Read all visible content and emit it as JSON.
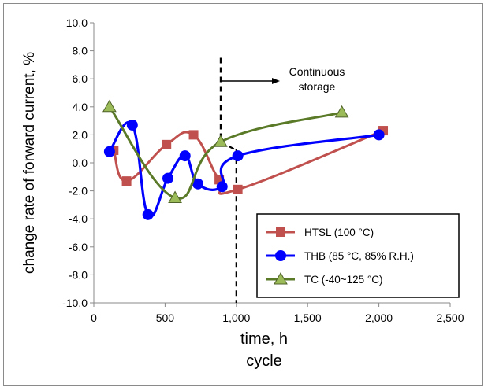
{
  "chart_data": {
    "type": "line",
    "xlabel": "time, h",
    "xlabel2": "cycle",
    "ylabel": "change rate of forward current, %",
    "xlim": [
      0,
      2500
    ],
    "ylim": [
      -10,
      10
    ],
    "xticks": [
      0,
      500,
      1000,
      1500,
      2000,
      2500
    ],
    "xtick_labels": [
      "0",
      "500",
      "1,000",
      "1,500",
      "2,000",
      "2,500"
    ],
    "yticks": [
      -10,
      -8,
      -6,
      -4,
      -2,
      0,
      2,
      4,
      6,
      8,
      10
    ],
    "ytick_labels": [
      "-10.0",
      "-8.0",
      "-6.0",
      "-4.0",
      "-2.0",
      "0.0",
      "2.0",
      "4.0",
      "6.0",
      "8.0",
      "10.0"
    ],
    "grid": false,
    "legend_position": "bottom-right",
    "annotations": [
      {
        "text_line1": "Continuous",
        "text_line2": "storage"
      }
    ],
    "marker_lines": [
      {
        "x": 1000,
        "style": "dashed"
      },
      {
        "x": 890,
        "style": "dashed"
      }
    ],
    "series": [
      {
        "name": "HTSL (100 °C)",
        "color": "#c0504d",
        "marker": "square",
        "x": [
          140,
          230,
          510,
          700,
          880,
          1010,
          2030
        ],
        "y": [
          0.9,
          -1.3,
          1.3,
          2.0,
          -1.2,
          -1.9,
          2.3
        ]
      },
      {
        "name": "THB (85 °C, 85% R.H.)",
        "color": "#0000ff",
        "marker": "circle",
        "x": [
          110,
          270,
          380,
          520,
          640,
          730,
          900,
          1010,
          2000
        ],
        "y": [
          0.8,
          2.7,
          -3.7,
          -1.1,
          0.5,
          -1.5,
          -1.7,
          0.5,
          2.0
        ]
      },
      {
        "name": "TC (-40~125 °C)",
        "color": "#5a7a28",
        "marker": "triangle",
        "x": [
          110,
          570,
          890,
          1740
        ],
        "y": [
          4.0,
          -2.5,
          1.5,
          3.6
        ]
      }
    ]
  }
}
